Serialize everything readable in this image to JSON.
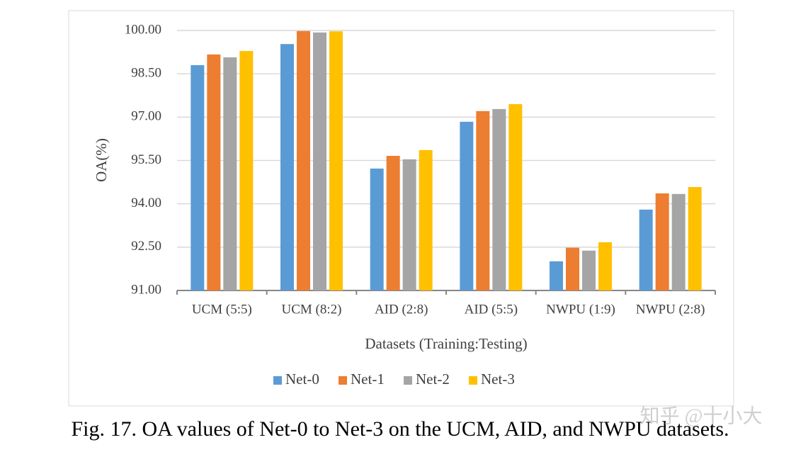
{
  "chart_data": {
    "type": "bar",
    "y_label": "OA(%)",
    "x_label": "Datasets (Training:Testing)",
    "caption": "Fig. 17.   OA values of Net-0 to Net-3 on the UCM, AID, and NWPU datasets.",
    "watermark": "知乎 @十小大",
    "categories": [
      "UCM (5:5)",
      "UCM (8:2)",
      "AID (2:8)",
      "AID (5:5)",
      "NWPU (1:9)",
      "NWPU (2:8)"
    ],
    "series": [
      {
        "name": "Net-0",
        "color": "#5b9bd5",
        "values": [
          98.8,
          99.53,
          95.22,
          96.84,
          92.01,
          93.8
        ]
      },
      {
        "name": "Net-1",
        "color": "#ed7d31",
        "values": [
          99.17,
          99.98,
          95.66,
          97.21,
          92.48,
          94.36
        ]
      },
      {
        "name": "Net-2",
        "color": "#a5a5a5",
        "values": [
          99.07,
          99.93,
          95.54,
          97.28,
          92.38,
          94.34
        ]
      },
      {
        "name": "Net-3",
        "color": "#ffc000",
        "values": [
          99.29,
          99.97,
          95.86,
          97.45,
          92.67,
          94.58
        ]
      }
    ],
    "ylim": [
      91,
      100
    ],
    "yticks": [
      {
        "value": 91,
        "label": "91.00"
      },
      {
        "value": 92.5,
        "label": "92.50"
      },
      {
        "value": 94,
        "label": "94.00"
      },
      {
        "value": 95.5,
        "label": "95.50"
      },
      {
        "value": 97,
        "label": "97.00"
      },
      {
        "value": 98.5,
        "label": "98.50"
      },
      {
        "value": 100,
        "label": "100.00"
      }
    ],
    "grid": true,
    "legend": "bottom"
  }
}
